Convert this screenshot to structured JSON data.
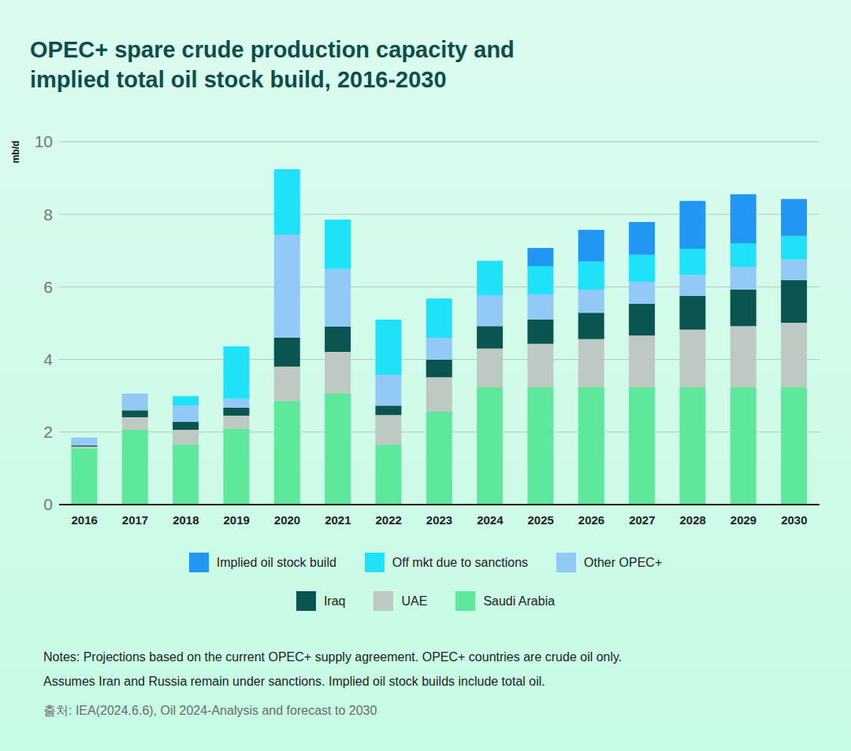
{
  "chart_data": {
    "type": "bar",
    "title": "OPEC+ spare crude production capacity and implied total oil stock build, 2016-2030",
    "y_label": "mb/d",
    "categories": [
      "2016",
      "2017",
      "2018",
      "2019",
      "2020",
      "2021",
      "2022",
      "2023",
      "2024",
      "2025",
      "2026",
      "2027",
      "2028",
      "2029",
      "2030"
    ],
    "series": [
      {
        "name": "Saudi Arabia",
        "color": "#5ee89c",
        "values": [
          1.55,
          2.06,
          1.65,
          2.08,
          2.86,
          3.06,
          1.65,
          2.56,
          3.23,
          3.23,
          3.23,
          3.23,
          3.23,
          3.23,
          3.23
        ]
      },
      {
        "name": "UAE",
        "color": "#bfc9c3",
        "values": [
          0.05,
          0.35,
          0.41,
          0.37,
          0.94,
          1.15,
          0.82,
          0.95,
          1.07,
          1.2,
          1.33,
          1.43,
          1.59,
          1.69,
          1.78
        ]
      },
      {
        "name": "Iraq",
        "color": "#0b5551",
        "values": [
          0.03,
          0.19,
          0.22,
          0.22,
          0.8,
          0.69,
          0.26,
          0.48,
          0.62,
          0.67,
          0.73,
          0.87,
          0.93,
          1.0,
          1.17
        ]
      },
      {
        "name": "Other OPEC+",
        "color": "#92c9f7",
        "values": [
          0.22,
          0.46,
          0.45,
          0.24,
          2.84,
          1.59,
          0.85,
          0.61,
          0.85,
          0.69,
          0.63,
          0.61,
          0.58,
          0.63,
          0.57
        ]
      },
      {
        "name": "Off mkt due to sanctions",
        "color": "#1fe1f8",
        "values": [
          0,
          0,
          0.26,
          1.45,
          1.8,
          1.36,
          1.52,
          1.08,
          0.95,
          0.78,
          0.78,
          0.74,
          0.72,
          0.65,
          0.65
        ]
      },
      {
        "name": "Implied oil stock build",
        "color": "#2196f2",
        "values": [
          0,
          0,
          0,
          0,
          0,
          0,
          0,
          0,
          0,
          0.5,
          0.87,
          0.91,
          1.32,
          1.35,
          1.02
        ]
      }
    ],
    "ylim": [
      0,
      10
    ],
    "yticks": [
      0,
      2,
      4,
      6,
      8,
      10
    ],
    "grid": true,
    "stacked": true,
    "legend": "bottom",
    "notes": [
      "Notes: Projections based on the current OPEC+ supply agreement. OPEC+ countries are crude oil only.",
      "Assumes Iran and Russia remain under sanctions. Implied oil stock builds include total oil."
    ],
    "source": "출처: IEA(2024.6.6), Oil 2024-Analysis and forecast to 2030"
  }
}
